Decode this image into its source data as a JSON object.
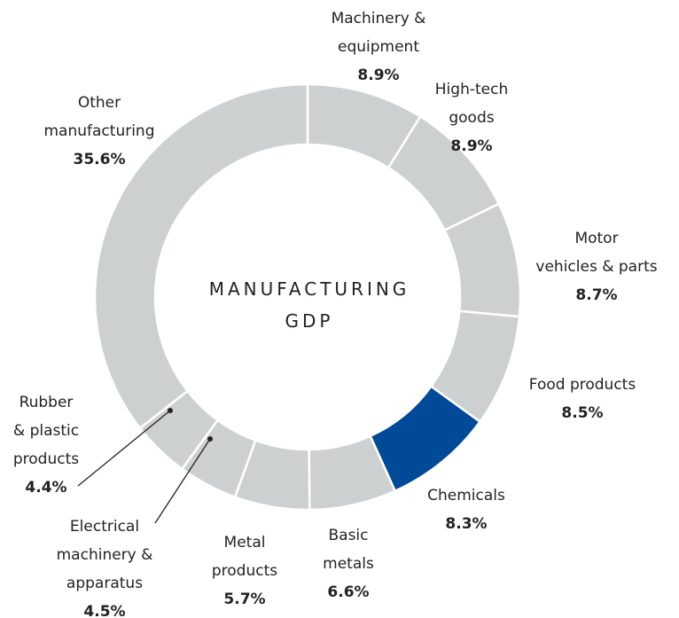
{
  "chart_data": {
    "type": "donut",
    "center_label": "MANUFACTURING\nGDP",
    "categories": [
      "Machinery &\nequipment",
      "High-tech\ngoods",
      "Motor\nvehicles & parts",
      "Food products",
      "Chemicals",
      "Basic\nmetals",
      "Metal\nproducts",
      "Electrical\nmachinery &\napparatus",
      "Rubber\n& plastic\nproducts",
      "Other\nmanufacturing"
    ],
    "values": [
      8.9,
      8.9,
      8.7,
      8.5,
      8.3,
      6.6,
      5.7,
      4.5,
      4.4,
      35.6
    ],
    "value_labels": [
      "8.9%",
      "8.9%",
      "8.7%",
      "8.5%",
      "8.3%",
      "6.6%",
      "5.7%",
      "4.5%",
      "4.4%",
      "35.6%"
    ],
    "colors": [
      "#ccd0d1",
      "#ccd0d1",
      "#ccd0d1",
      "#ccd0d1",
      "#004a98",
      "#ccd0d1",
      "#ccd0d1",
      "#ccd0d1",
      "#ccd0d1",
      "#ccd0d1"
    ]
  }
}
